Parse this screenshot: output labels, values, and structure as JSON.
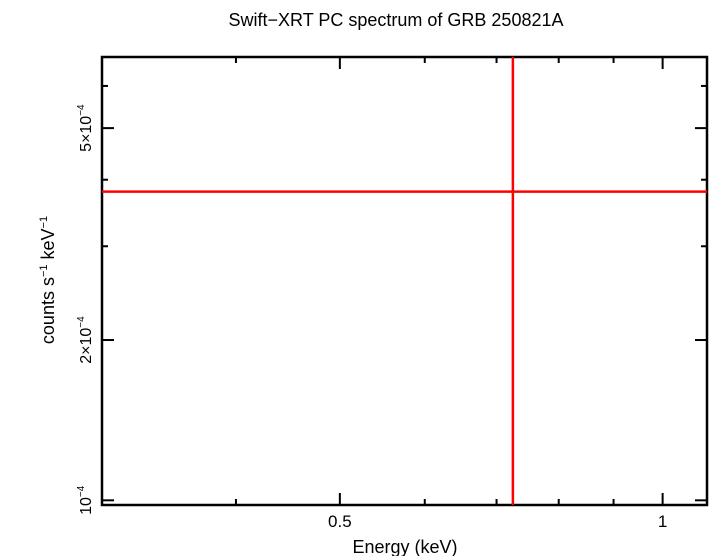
{
  "chart_data": {
    "type": "scatter",
    "title": "Swift−XRT PC spectrum of GRB 250821A",
    "xlabel": "Energy (keV)",
    "ylabel_parts": {
      "pre": "counts s",
      "exp1": "−1",
      "mid": " keV",
      "exp2": "−1"
    },
    "x_scale": "log",
    "y_scale": "log",
    "xlim": [
      0.3,
      1.1
    ],
    "ylim": [
      9.8e-05,
      0.00068
    ],
    "x_ticks": [
      {
        "value": 0.5,
        "label": "0.5"
      },
      {
        "value": 1,
        "label": "1"
      }
    ],
    "y_ticks": [
      {
        "value": 0.0001,
        "mant": "10",
        "exp": "−4"
      },
      {
        "value": 0.0002,
        "mant": "2×10",
        "exp": "−4"
      },
      {
        "value": 0.0005,
        "mant": "5×10",
        "exp": "−4"
      }
    ],
    "series": [
      {
        "color": "#ff0000",
        "points": [
          {
            "x": 0.725,
            "y": 0.00038,
            "x_err": [
              0.3,
              1.1
            ],
            "y_err": [
              9.8e-05,
              0.00068
            ]
          }
        ]
      }
    ],
    "grid": false
  }
}
